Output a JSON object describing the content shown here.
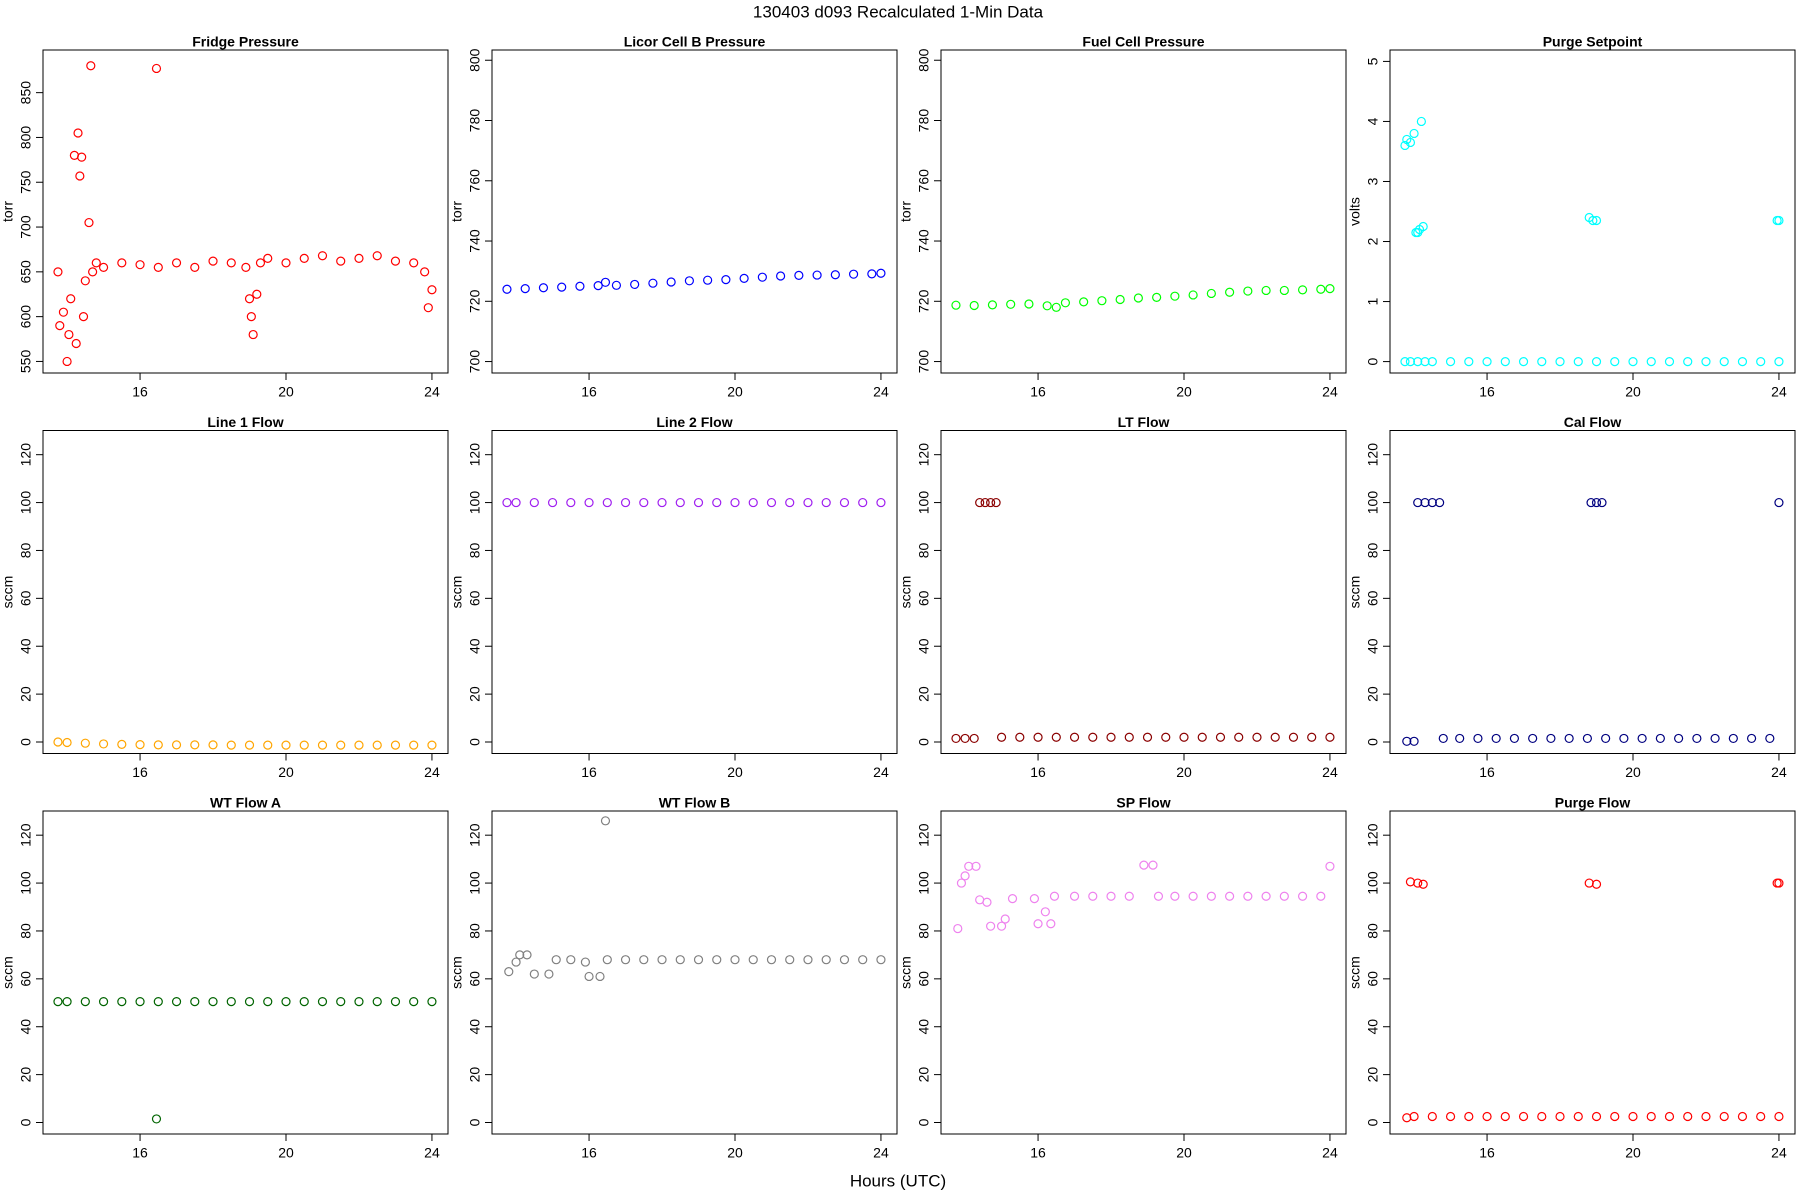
{
  "title": "130403   d093   Recalculated 1-Min Data",
  "xlabel": "Hours (UTC)",
  "chart_data": [
    {
      "type": "scatter",
      "title": "Fridge Pressure",
      "ylabel": "torr",
      "xlim": [
        13.34,
        24.44
      ],
      "xticks": [
        16,
        20,
        24
      ],
      "ylim": [
        537.1,
        897.6
      ],
      "yticks": [
        550,
        600,
        650,
        700,
        750,
        800,
        850
      ],
      "series": [
        {
          "color": "#ff0000",
          "x": [
            13.75,
            13.8,
            13.9,
            14.0,
            14.05,
            14.1,
            14.2,
            14.25,
            14.3,
            14.35,
            14.4,
            14.45,
            14.5,
            14.6,
            14.65,
            14.7,
            14.8,
            15.0,
            15.5,
            16.0,
            16.45,
            16.5,
            17.0,
            17.5,
            18.0,
            18.5,
            18.9,
            19.0,
            19.05,
            19.1,
            19.2,
            19.3,
            19.5,
            20.0,
            20.5,
            21.0,
            21.5,
            22.0,
            22.5,
            23.0,
            23.5,
            23.8,
            23.9,
            24.0
          ],
          "values": [
            650,
            590,
            605,
            550,
            580,
            620,
            780,
            570,
            805,
            757,
            778,
            600,
            640,
            705,
            880,
            650,
            660,
            655,
            660,
            658,
            877,
            655,
            660,
            655,
            662,
            660,
            655,
            620,
            600,
            580,
            625,
            660,
            665,
            660,
            665,
            668,
            662,
            665,
            668,
            662,
            660,
            650,
            610,
            630
          ]
        }
      ]
    },
    {
      "type": "scatter",
      "title": "Licor Cell B Pressure",
      "ylabel": "torr",
      "xlim": [
        13.34,
        24.44
      ],
      "xticks": [
        16,
        20,
        24
      ],
      "ylim": [
        696.2,
        803.4
      ],
      "yticks": [
        700,
        720,
        740,
        760,
        780,
        800
      ],
      "series": [
        {
          "color": "#0000ff",
          "x": [
            13.75,
            14.25,
            14.75,
            15.25,
            15.75,
            16.25,
            16.45,
            16.75,
            17.25,
            17.75,
            18.25,
            18.75,
            19.25,
            19.75,
            20.25,
            20.75,
            21.25,
            21.75,
            22.25,
            22.75,
            23.25,
            23.75,
            24.0
          ],
          "values": [
            724.0,
            724.2,
            724.5,
            724.7,
            725.0,
            725.2,
            726.3,
            725.3,
            725.6,
            726.0,
            726.4,
            726.8,
            727.0,
            727.2,
            727.6,
            728.0,
            728.4,
            728.6,
            728.7,
            728.8,
            729.0,
            729.1,
            729.3
          ]
        }
      ]
    },
    {
      "type": "scatter",
      "title": "Fuel Cell Pressure",
      "ylabel": "torr",
      "xlim": [
        13.34,
        24.44
      ],
      "xticks": [
        16,
        20,
        24
      ],
      "ylim": [
        696.2,
        803.4
      ],
      "yticks": [
        700,
        720,
        740,
        760,
        780,
        800
      ],
      "series": [
        {
          "color": "#00ff00",
          "x": [
            13.75,
            14.25,
            14.75,
            15.25,
            15.75,
            16.25,
            16.5,
            16.75,
            17.25,
            17.75,
            18.25,
            18.75,
            19.25,
            19.75,
            20.25,
            20.75,
            21.25,
            21.75,
            22.25,
            22.75,
            23.25,
            23.75,
            24.0
          ],
          "values": [
            718.7,
            718.6,
            718.8,
            719.0,
            719.1,
            718.5,
            718.0,
            719.5,
            719.8,
            720.2,
            720.6,
            721.1,
            721.3,
            721.7,
            722.1,
            722.6,
            723.0,
            723.4,
            723.6,
            723.6,
            723.8,
            724.0,
            724.2
          ]
        }
      ]
    },
    {
      "type": "scatter",
      "title": "Purge Setpoint",
      "ylabel": "volts",
      "xlim": [
        13.34,
        24.44
      ],
      "xticks": [
        16,
        20,
        24
      ],
      "ylim": [
        -0.19,
        5.19
      ],
      "yticks": [
        0,
        1,
        2,
        3,
        4,
        5
      ],
      "series": [
        {
          "color": "#00ffff",
          "x": [
            13.75,
            13.8,
            13.9,
            14.0,
            14.05,
            14.1,
            14.15,
            14.2,
            14.25,
            13.75,
            13.9,
            14.1,
            14.3,
            14.5,
            15.0,
            15.5,
            16.0,
            16.5,
            17.0,
            17.5,
            18.0,
            18.5,
            19.0,
            19.5,
            20.0,
            20.5,
            21.0,
            21.5,
            22.0,
            22.5,
            23.0,
            23.5,
            24.0,
            18.8,
            18.9,
            19.0,
            23.95,
            24.0
          ],
          "values": [
            3.6,
            3.7,
            3.65,
            3.8,
            2.15,
            2.15,
            2.2,
            4.0,
            2.25,
            0,
            0,
            0,
            0,
            0,
            0,
            0,
            0,
            0,
            0,
            0,
            0,
            0,
            0,
            0,
            0,
            0,
            0,
            0,
            0,
            0,
            0,
            0,
            0,
            2.4,
            2.35,
            2.35,
            2.35,
            2.35
          ]
        }
      ]
    },
    {
      "type": "scatter",
      "title": "Line 1 Flow",
      "ylabel": "sccm",
      "xlim": [
        13.34,
        24.44
      ],
      "xticks": [
        16,
        20,
        24
      ],
      "ylim": [
        -4.8,
        130.1
      ],
      "yticks": [
        0,
        20,
        40,
        60,
        80,
        100,
        120
      ],
      "series": [
        {
          "color": "#ffa500",
          "x": [
            13.75,
            14.0,
            14.5,
            15.0,
            15.5,
            16.0,
            16.5,
            17.0,
            17.5,
            18.0,
            18.5,
            19.0,
            19.5,
            20.0,
            20.5,
            21.0,
            21.5,
            22.0,
            22.5,
            23.0,
            23.5,
            24.0
          ],
          "values": [
            0,
            -0.2,
            -0.5,
            -0.8,
            -1,
            -1.1,
            -1.2,
            -1.2,
            -1.2,
            -1.2,
            -1.3,
            -1.3,
            -1.3,
            -1.3,
            -1.3,
            -1.3,
            -1.3,
            -1.3,
            -1.3,
            -1.3,
            -1.3,
            -1.3
          ]
        }
      ]
    },
    {
      "type": "scatter",
      "title": "Line 2 Flow",
      "ylabel": "sccm",
      "xlim": [
        13.34,
        24.44
      ],
      "xticks": [
        16,
        20,
        24
      ],
      "ylim": [
        -4.8,
        130.1
      ],
      "yticks": [
        0,
        20,
        40,
        60,
        80,
        100,
        120
      ],
      "series": [
        {
          "color": "#a020f0",
          "x": [
            13.75,
            14.0,
            14.5,
            15.0,
            15.5,
            16.0,
            16.5,
            17.0,
            17.5,
            18.0,
            18.5,
            19.0,
            19.5,
            20.0,
            20.5,
            21.0,
            21.5,
            22.0,
            22.5,
            23.0,
            23.5,
            24.0
          ],
          "values": [
            100,
            100,
            100,
            100,
            100,
            100,
            100,
            100,
            100,
            100,
            100,
            100,
            100,
            100,
            100,
            100,
            100,
            100,
            100,
            100,
            100,
            100
          ]
        }
      ]
    },
    {
      "type": "scatter",
      "title": "LT Flow",
      "ylabel": "sccm",
      "xlim": [
        13.34,
        24.44
      ],
      "xticks": [
        16,
        20,
        24
      ],
      "ylim": [
        -4.8,
        130.1
      ],
      "yticks": [
        0,
        20,
        40,
        60,
        80,
        100,
        120
      ],
      "series": [
        {
          "color": "#8b0000",
          "x": [
            13.75,
            14.0,
            14.25,
            14.4,
            14.55,
            14.7,
            14.85,
            15.0,
            15.5,
            16.0,
            16.5,
            17.0,
            17.5,
            18.0,
            18.5,
            19.0,
            19.5,
            20.0,
            20.5,
            21.0,
            21.5,
            22.0,
            22.5,
            23.0,
            23.5,
            24.0
          ],
          "values": [
            1.5,
            1.5,
            1.5,
            100,
            100,
            100,
            100,
            2,
            2,
            2,
            2,
            2,
            2,
            2,
            2,
            2,
            2,
            2,
            2,
            2,
            2,
            2,
            2,
            2,
            2,
            2
          ]
        }
      ]
    },
    {
      "type": "scatter",
      "title": "Cal Flow",
      "ylabel": "sccm",
      "xlim": [
        13.34,
        24.44
      ],
      "xticks": [
        16,
        20,
        24
      ],
      "ylim": [
        -4.8,
        130.1
      ],
      "yticks": [
        0,
        20,
        40,
        60,
        80,
        100,
        120
      ],
      "series": [
        {
          "color": "#000080",
          "x": [
            13.8,
            14.0,
            14.1,
            14.3,
            14.5,
            14.7,
            14.8,
            15.25,
            15.75,
            16.25,
            16.75,
            17.25,
            17.75,
            18.25,
            18.75,
            18.85,
            19.0,
            19.15,
            19.25,
            19.75,
            20.25,
            20.75,
            21.25,
            21.75,
            22.25,
            22.75,
            23.25,
            23.75,
            24.0
          ],
          "values": [
            0.3,
            0.3,
            100,
            100,
            100,
            100,
            1.5,
            1.5,
            1.5,
            1.5,
            1.5,
            1.5,
            1.5,
            1.5,
            1.5,
            100,
            100,
            100,
            1.5,
            1.5,
            1.5,
            1.5,
            1.5,
            1.5,
            1.5,
            1.5,
            1.5,
            1.5,
            100
          ]
        }
      ]
    },
    {
      "type": "scatter",
      "title": "WT Flow A",
      "ylabel": "sccm",
      "xlim": [
        13.34,
        24.44
      ],
      "xticks": [
        16,
        20,
        24
      ],
      "ylim": [
        -4.8,
        130.1
      ],
      "yticks": [
        0,
        20,
        40,
        60,
        80,
        100,
        120
      ],
      "series": [
        {
          "color": "#006400",
          "x": [
            13.75,
            14.0,
            14.5,
            15.0,
            15.5,
            16.0,
            16.45,
            16.5,
            17.0,
            17.5,
            18.0,
            18.5,
            19.0,
            19.5,
            20.0,
            20.5,
            21.0,
            21.5,
            22.0,
            22.5,
            23.0,
            23.5,
            24.0
          ],
          "values": [
            50.5,
            50.5,
            50.5,
            50.5,
            50.5,
            50.5,
            1.5,
            50.5,
            50.5,
            50.5,
            50.5,
            50.5,
            50.5,
            50.5,
            50.5,
            50.5,
            50.5,
            50.5,
            50.5,
            50.5,
            50.5,
            50.5,
            50.5
          ]
        }
      ]
    },
    {
      "type": "scatter",
      "title": "WT Flow B",
      "ylabel": "sccm",
      "xlim": [
        13.34,
        24.44
      ],
      "xticks": [
        16,
        20,
        24
      ],
      "ylim": [
        -4.8,
        130.1
      ],
      "yticks": [
        0,
        20,
        40,
        60,
        80,
        100,
        120
      ],
      "series": [
        {
          "color": "#808080",
          "x": [
            13.8,
            14.0,
            14.1,
            14.3,
            14.5,
            14.9,
            15.1,
            15.5,
            15.9,
            16.0,
            16.3,
            16.45,
            16.5,
            17.0,
            17.5,
            18.0,
            18.5,
            19.0,
            19.5,
            20.0,
            20.5,
            21.0,
            21.5,
            22.0,
            22.5,
            23.0,
            23.5,
            24.0
          ],
          "values": [
            63,
            67,
            70,
            70,
            62,
            62,
            68,
            68,
            67,
            61,
            61,
            126,
            68,
            68,
            68,
            68,
            68,
            68,
            68,
            68,
            68,
            68,
            68,
            68,
            68,
            68,
            68,
            68
          ]
        }
      ]
    },
    {
      "type": "scatter",
      "title": "SP Flow",
      "ylabel": "sccm",
      "xlim": [
        13.34,
        24.44
      ],
      "xticks": [
        16,
        20,
        24
      ],
      "ylim": [
        -4.8,
        130.1
      ],
      "yticks": [
        0,
        20,
        40,
        60,
        80,
        100,
        120
      ],
      "series": [
        {
          "color": "#ee82ee",
          "x": [
            13.8,
            13.9,
            14.0,
            14.1,
            14.3,
            14.4,
            14.6,
            14.7,
            15.0,
            15.1,
            15.3,
            15.9,
            16.0,
            16.2,
            16.35,
            16.45,
            17.0,
            17.5,
            18.0,
            18.5,
            18.9,
            19.15,
            19.3,
            19.75,
            20.25,
            20.75,
            21.25,
            21.75,
            22.25,
            22.75,
            23.25,
            23.75,
            24.0
          ],
          "values": [
            81,
            100,
            103,
            107,
            107,
            93,
            92,
            82,
            82,
            85,
            93.5,
            93.5,
            83,
            88,
            83,
            94.5,
            94.5,
            94.5,
            94.5,
            94.5,
            107.5,
            107.5,
            94.5,
            94.5,
            94.5,
            94.5,
            94.5,
            94.5,
            94.5,
            94.5,
            94.5,
            94.5,
            107
          ]
        }
      ]
    },
    {
      "type": "scatter",
      "title": "Purge Flow",
      "ylabel": "sccm",
      "xlim": [
        13.34,
        24.44
      ],
      "xticks": [
        16,
        20,
        24
      ],
      "ylim": [
        -4.8,
        130.1
      ],
      "yticks": [
        0,
        20,
        40,
        60,
        80,
        100,
        120
      ],
      "series": [
        {
          "color": "#ff0000",
          "x": [
            13.8,
            13.9,
            14.1,
            14.25,
            14.0,
            14.5,
            15.0,
            15.5,
            16.0,
            16.5,
            17.0,
            17.5,
            18.0,
            18.5,
            19.0,
            19.5,
            20.0,
            20.5,
            21.0,
            21.5,
            22.0,
            22.5,
            23.0,
            23.5,
            24.0,
            18.8,
            19.0,
            23.95,
            24.0
          ],
          "values": [
            2,
            100.5,
            100,
            99.5,
            2.5,
            2.5,
            2.5,
            2.5,
            2.5,
            2.5,
            2.5,
            2.5,
            2.5,
            2.5,
            2.5,
            2.5,
            2.5,
            2.5,
            2.5,
            2.5,
            2.5,
            2.5,
            2.5,
            2.5,
            2.5,
            100,
            99.5,
            100,
            100
          ]
        }
      ]
    }
  ]
}
